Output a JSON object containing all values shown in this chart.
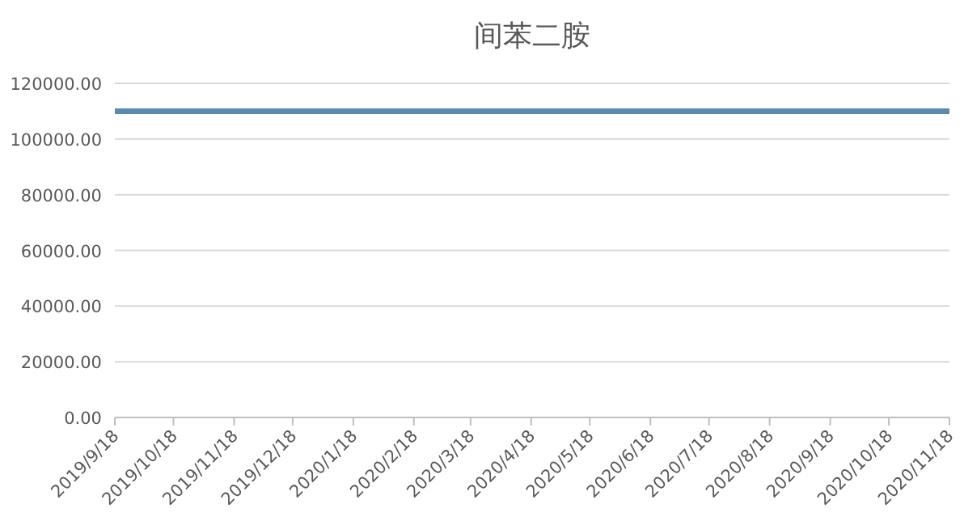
{
  "chart_data": {
    "type": "line",
    "title": "间苯二胺",
    "x": [
      "2019-09-18",
      "2020-11-18"
    ],
    "series": [
      {
        "color": "#5a8ab0",
        "values": [
          110000,
          110000
        ]
      }
    ],
    "xlim": [
      "2019-09-18",
      "2020-11-18"
    ],
    "xticks": [
      {
        "value": "2019-09-18",
        "label": "2019/9/18"
      },
      {
        "value": "2019-10-18",
        "label": "2019/10/18"
      },
      {
        "value": "2019-11-18",
        "label": "2019/11/18"
      },
      {
        "value": "2019-12-18",
        "label": "2019/12/18"
      },
      {
        "value": "2020-01-18",
        "label": "2020/1/18"
      },
      {
        "value": "2020-02-18",
        "label": "2020/2/18"
      },
      {
        "value": "2020-03-18",
        "label": "2020/3/18"
      },
      {
        "value": "2020-04-18",
        "label": "2020/4/18"
      },
      {
        "value": "2020-05-18",
        "label": "2020/5/18"
      },
      {
        "value": "2020-06-18",
        "label": "2020/6/18"
      },
      {
        "value": "2020-07-18",
        "label": "2020/7/18"
      },
      {
        "value": "2020-08-18",
        "label": "2020/8/18"
      },
      {
        "value": "2020-09-18",
        "label": "2020/9/18"
      },
      {
        "value": "2020-10-18",
        "label": "2020/10/18"
      },
      {
        "value": "2020-11-18",
        "label": "2020/11/18"
      }
    ],
    "ylim": [
      0,
      120000
    ],
    "yticks": [
      {
        "value": 0,
        "label": "0.00"
      },
      {
        "value": 20000,
        "label": "20000.00"
      },
      {
        "value": 40000,
        "label": "40000.00"
      },
      {
        "value": 60000,
        "label": "60000.00"
      },
      {
        "value": 80000,
        "label": "80000.00"
      },
      {
        "value": 100000,
        "label": "100000.00"
      },
      {
        "value": 120000,
        "label": "120000.00"
      }
    ],
    "grid": "y"
  }
}
